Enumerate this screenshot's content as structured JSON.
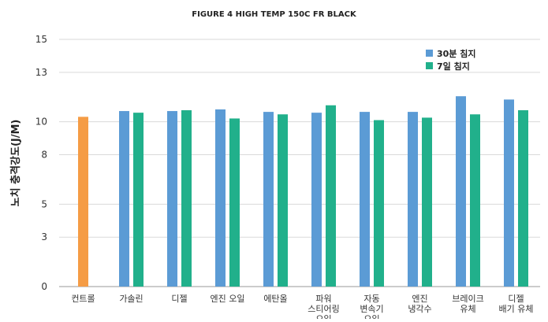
{
  "chart_data": {
    "type": "bar",
    "title": "FIGURE 4 HIGH TEMP 150C FR BLACK",
    "ylabel": "노치 충격강도(J/M)",
    "xlabel": "",
    "ylim": [
      0,
      15
    ],
    "yticks": [
      0,
      3,
      5,
      8,
      10,
      13,
      15
    ],
    "grid": true,
    "legend_position": "top-right",
    "categories": [
      [
        "컨트롤"
      ],
      [
        "가솔린"
      ],
      [
        "디젤"
      ],
      [
        "엔진 오일"
      ],
      [
        "에탄올"
      ],
      [
        "파워",
        "스티어링",
        "오일"
      ],
      [
        "자동",
        "변속기",
        "오일"
      ],
      [
        "엔진",
        "냉각수"
      ],
      [
        "브레이크",
        "유체"
      ],
      [
        "디젤",
        "배기 유체"
      ]
    ],
    "control": {
      "value": 10.3,
      "color": "#f59c45"
    },
    "series": [
      {
        "name": "30분 침지",
        "color": "#5b9bd5",
        "values": [
          null,
          10.65,
          10.65,
          10.75,
          10.6,
          10.55,
          10.6,
          10.6,
          11.55,
          11.35
        ]
      },
      {
        "name": "7일 침지",
        "color": "#21b08b",
        "values": [
          null,
          10.55,
          10.7,
          10.2,
          10.45,
          11.0,
          10.1,
          10.25,
          10.45,
          10.7
        ]
      }
    ]
  }
}
